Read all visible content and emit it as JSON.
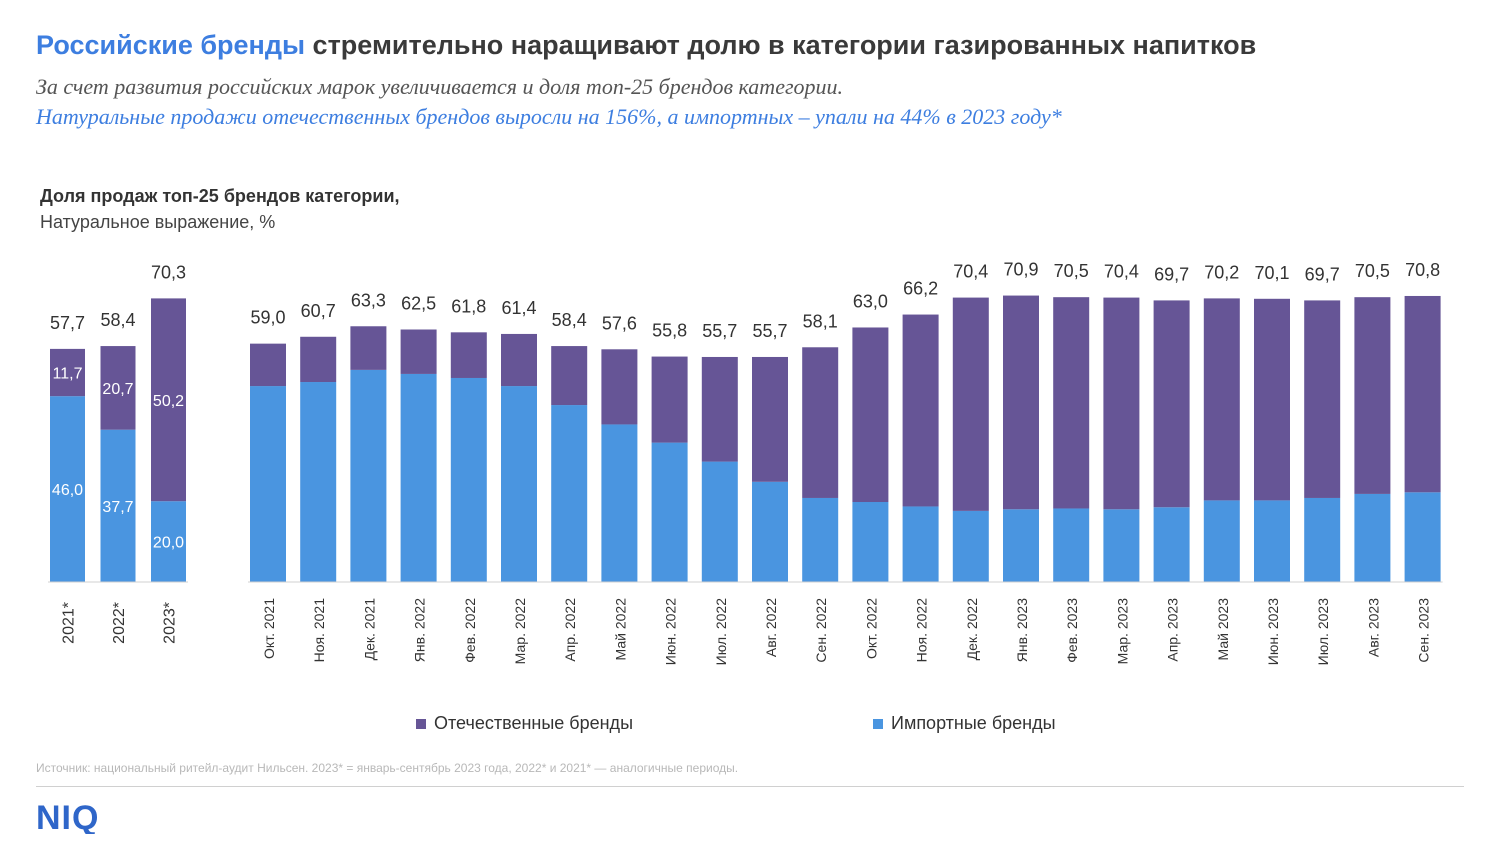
{
  "header": {
    "title_accent": "Российские бренды",
    "title_rest": " стремительно наращивают долю в категории газированных напитков",
    "subtitle_1": "За счет развития российских марок увеличивается и доля топ-25 брендов категории.",
    "subtitle_2": "Натуральные продажи отечественных брендов выросли на 156%, а импортных – упали на 44% в 2023 году*"
  },
  "chart_data": {
    "type": "bar",
    "stacked": true,
    "title": "Доля продаж топ-25 брендов категории,",
    "ylabel": "Натуральное выражение, %",
    "ylim": [
      0,
      75
    ],
    "grid": false,
    "legend_position": "bottom",
    "colors": {
      "domestic": "#665596",
      "import": "#4a95e0"
    },
    "annual": {
      "categories": [
        "2021*",
        "2022*",
        "2023*"
      ],
      "totals": [
        57.7,
        58.4,
        70.3
      ],
      "series": [
        {
          "name": "Импортные бренды",
          "values": [
            46.0,
            37.7,
            20.0
          ],
          "labels": [
            "46,0",
            "37,7",
            "20,0"
          ]
        },
        {
          "name": "Отечественные бренды",
          "values": [
            11.7,
            20.7,
            50.2
          ],
          "labels": [
            "11,7",
            "20,7",
            "50,2"
          ]
        }
      ],
      "total_labels": [
        "57,7",
        "58,4",
        "70,3"
      ]
    },
    "monthly": {
      "categories": [
        "Окт. 2021",
        "Ноя. 2021",
        "Дек. 2021",
        "Янв. 2022",
        "Фев. 2022",
        "Мар. 2022",
        "Апр. 2022",
        "Май 2022",
        "Июн. 2022",
        "Июл. 2022",
        "Авг. 2022",
        "Сен. 2022",
        "Окт. 2022",
        "Ноя. 2022",
        "Дек. 2022",
        "Янв. 2023",
        "Фев. 2023",
        "Мар. 2023",
        "Апр. 2023",
        "Май 2023",
        "Июн. 2023",
        "Июл. 2023",
        "Авг. 2023",
        "Сен. 2023"
      ],
      "totals": [
        59.0,
        60.7,
        63.3,
        62.5,
        61.8,
        61.4,
        58.4,
        57.6,
        55.8,
        55.7,
        55.7,
        58.1,
        63.0,
        66.2,
        70.4,
        70.9,
        70.5,
        70.4,
        69.7,
        70.2,
        70.1,
        69.7,
        70.5,
        70.8
      ],
      "total_labels": [
        "59,0",
        "60,7",
        "63,3",
        "62,5",
        "61,8",
        "61,4",
        "58,4",
        "57,6",
        "55,8",
        "55,7",
        "55,7",
        "58,1",
        "63,0",
        "66,2",
        "70,4",
        "70,9",
        "70,5",
        "70,4",
        "69,7",
        "70,2",
        "70,1",
        "69,7",
        "70,5",
        "70,8"
      ],
      "series": [
        {
          "name": "Импортные бренды",
          "values": [
            48.5,
            49.5,
            52.5,
            51.5,
            50.5,
            48.5,
            43.8,
            39.0,
            34.5,
            29.8,
            24.8,
            20.8,
            19.8,
            18.7,
            17.6,
            18.0,
            18.2,
            18.0,
            18.5,
            20.2,
            20.2,
            20.8,
            21.8,
            22.2
          ]
        },
        {
          "name": "Отечественные бренды",
          "values": [
            10.5,
            11.2,
            10.8,
            11.0,
            11.3,
            12.9,
            14.6,
            18.6,
            21.3,
            25.9,
            30.9,
            37.3,
            43.2,
            47.5,
            52.8,
            52.9,
            52.3,
            52.4,
            51.2,
            50.0,
            49.9,
            48.9,
            48.7,
            48.6
          ]
        }
      ]
    },
    "legend": [
      "Отечественные бренды",
      "Импортные бренды"
    ]
  },
  "footer": {
    "source": "Источник: национальный ритейл-аудит Нильсен. 2023* = январь-сентябрь 2023 года, 2022* и 2021* — аналогичные периоды.",
    "logo": "NIQ"
  }
}
